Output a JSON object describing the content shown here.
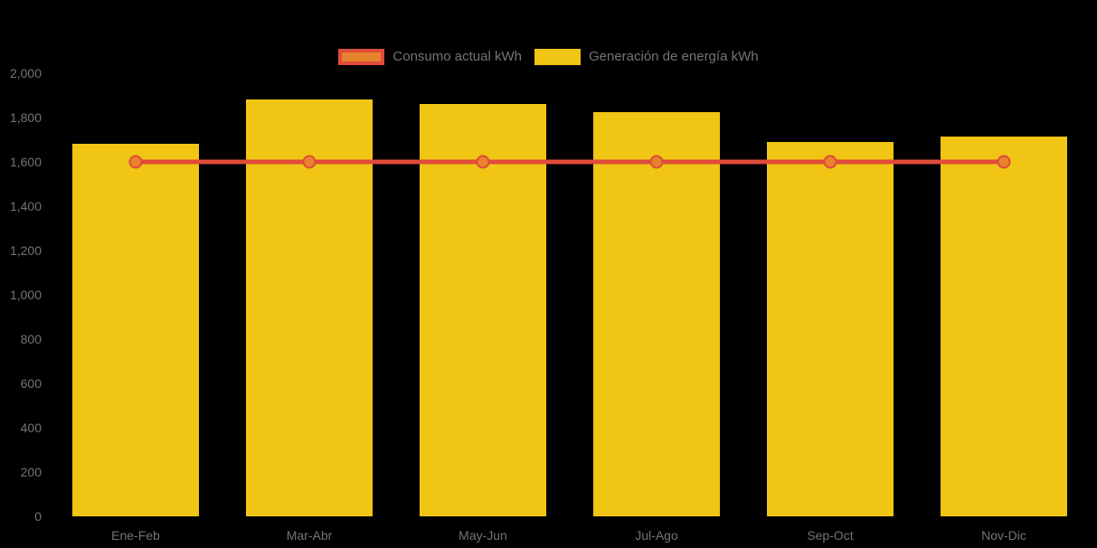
{
  "background_color": "#000000",
  "text_color": "#747474",
  "colors": {
    "bar_fill": "#F0C514",
    "line_stroke": "#E04B3A",
    "point_fill": "#E8832D"
  },
  "legend": {
    "items": [
      {
        "label": "Consumo actual kWh",
        "swatch": "red-bordered-orange-box"
      },
      {
        "label": "Generación de energía kWh",
        "swatch": "yellow-box"
      }
    ],
    "position": "top"
  },
  "chart_data": {
    "type": "bar",
    "subtype": "bar-with-line-overlay",
    "categories": [
      "Ene-Feb",
      "Mar-Abr",
      "May-Jun",
      "Jul-Ago",
      "Sep-Oct",
      "Nov-Dic"
    ],
    "series": [
      {
        "name": "Consumo actual kWh",
        "type": "line",
        "color": "#E04B3A",
        "point_color": "#E8832D",
        "values": [
          1600,
          1600,
          1600,
          1600,
          1600,
          1600
        ]
      },
      {
        "name": "Generación de energía kWh",
        "type": "bar",
        "color": "#F0C514",
        "values": [
          1680,
          1880,
          1860,
          1825,
          1690,
          1715
        ]
      }
    ],
    "title": "",
    "xlabel": "",
    "ylabel": "",
    "ylim": [
      0,
      2000
    ],
    "ytick_labels": [
      "0",
      "200",
      "400",
      "600",
      "800",
      "1,000",
      "1,200",
      "1,400",
      "1,600",
      "1,800",
      "2,000"
    ],
    "grid": false,
    "legend_position": "top"
  }
}
